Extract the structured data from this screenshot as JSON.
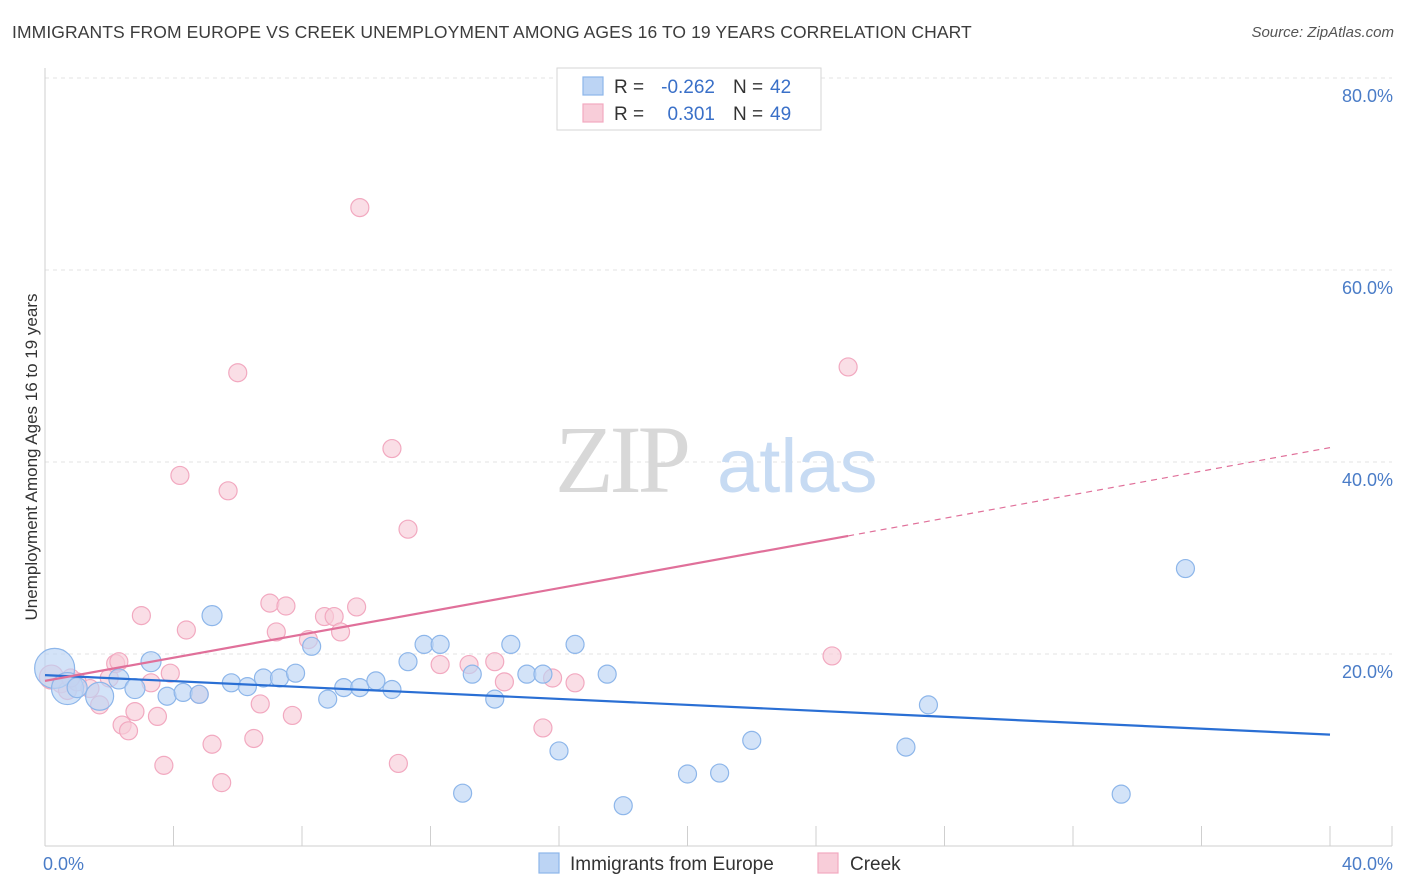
{
  "header": {
    "title": "IMMIGRANTS FROM EUROPE VS CREEK UNEMPLOYMENT AMONG AGES 16 TO 19 YEARS CORRELATION CHART",
    "source": "Source: ZipAtlas.com"
  },
  "watermark": {
    "zip": "ZIP",
    "atlas": "atlas"
  },
  "chart_data": {
    "type": "scatter",
    "title": "IMMIGRANTS FROM EUROPE VS CREEK UNEMPLOYMENT AMONG AGES 16 TO 19 YEARS CORRELATION CHART",
    "xlabel": "",
    "ylabel": "Unemployment Among Ages 16 to 19 years",
    "xlim": [
      0,
      40
    ],
    "ylim": [
      0,
      80
    ],
    "x_tick_labels": [
      "0.0%",
      "40.0%"
    ],
    "y_ticks": [
      20,
      40,
      60,
      80
    ],
    "y_tick_labels": [
      "20.0%",
      "40.0%",
      "60.0%",
      "80.0%"
    ],
    "grid": true,
    "legend": {
      "position": "top-center",
      "rows": [
        {
          "r_label": "R =",
          "r_value": "-0.262",
          "n_label": "N =",
          "n_value": "42"
        },
        {
          "r_label": "R =",
          "r_value": "0.301",
          "n_label": "N =",
          "n_value": "49"
        }
      ]
    },
    "series": [
      {
        "name": "Immigrants from Europe",
        "color": "#8db6ea",
        "fill": "#bcd4f4",
        "line_color": "#2a6fd4",
        "trend": {
          "x0": 0,
          "y0": 17.8,
          "x1": 40,
          "y1": 11.6
        },
        "points": [
          [
            0.3,
            18.5,
            20
          ],
          [
            0.7,
            16.4,
            16
          ],
          [
            1.0,
            16.5,
            10
          ],
          [
            1.7,
            15.6,
            14
          ],
          [
            2.3,
            17.4,
            10
          ],
          [
            2.8,
            16.4,
            10
          ],
          [
            3.3,
            19.2,
            10
          ],
          [
            3.8,
            15.6,
            9
          ],
          [
            4.3,
            16.0,
            9
          ],
          [
            4.8,
            15.8,
            9
          ],
          [
            5.2,
            24.0,
            10
          ],
          [
            5.8,
            17.0,
            9
          ],
          [
            6.3,
            16.6,
            9
          ],
          [
            6.8,
            17.5,
            9
          ],
          [
            7.3,
            17.5,
            9
          ],
          [
            7.8,
            18.0,
            9
          ],
          [
            8.3,
            20.8,
            9
          ],
          [
            8.8,
            15.3,
            9
          ],
          [
            9.3,
            16.5,
            9
          ],
          [
            9.8,
            16.5,
            9
          ],
          [
            10.3,
            17.2,
            9
          ],
          [
            10.8,
            16.3,
            9
          ],
          [
            11.3,
            19.2,
            9
          ],
          [
            11.8,
            21.0,
            9
          ],
          [
            12.3,
            21.0,
            9
          ],
          [
            13.0,
            5.5,
            9
          ],
          [
            13.3,
            17.9,
            9
          ],
          [
            14.0,
            15.3,
            9
          ],
          [
            14.5,
            21.0,
            9
          ],
          [
            15.0,
            17.9,
            9
          ],
          [
            15.5,
            17.9,
            9
          ],
          [
            16.0,
            9.9,
            9
          ],
          [
            16.5,
            21.0,
            9
          ],
          [
            17.5,
            17.9,
            9
          ],
          [
            18.0,
            4.2,
            9
          ],
          [
            20.0,
            7.5,
            9
          ],
          [
            21.0,
            7.6,
            9
          ],
          [
            22.0,
            11.0,
            9
          ],
          [
            26.8,
            10.3,
            9
          ],
          [
            27.5,
            14.7,
            9
          ],
          [
            33.5,
            5.4,
            9
          ],
          [
            35.5,
            28.9,
            9
          ]
        ]
      },
      {
        "name": "Creek",
        "color": "#f2a9c0",
        "fill": "#f8cdd9",
        "line_color": "#e0709a",
        "trend": {
          "x0": 0,
          "y0": 17.2,
          "x1": 25,
          "y1": 32.3
        },
        "trend_ext": {
          "x0": 25,
          "y0": 32.3,
          "x1": 40,
          "y1": 41.5
        },
        "points": [
          [
            0.2,
            17.6,
            12
          ],
          [
            0.5,
            16.9,
            9
          ],
          [
            0.7,
            16.2,
            9
          ],
          [
            1.0,
            17.1,
            9
          ],
          [
            1.4,
            16.4,
            9
          ],
          [
            1.7,
            14.7,
            9
          ],
          [
            2.0,
            17.5,
            9
          ],
          [
            2.2,
            19.0,
            9
          ],
          [
            2.3,
            19.2,
            9
          ],
          [
            2.4,
            12.6,
            9
          ],
          [
            2.6,
            12.0,
            9
          ],
          [
            2.8,
            14.0,
            9
          ],
          [
            3.0,
            24.0,
            9
          ],
          [
            3.3,
            17.0,
            9
          ],
          [
            3.5,
            13.5,
            9
          ],
          [
            3.7,
            8.4,
            9
          ],
          [
            3.9,
            18.0,
            9
          ],
          [
            4.2,
            38.6,
            9
          ],
          [
            4.4,
            22.5,
            9
          ],
          [
            4.8,
            15.8,
            9
          ],
          [
            5.2,
            10.6,
            9
          ],
          [
            5.5,
            6.6,
            9
          ],
          [
            5.7,
            37.0,
            9
          ],
          [
            6.0,
            49.3,
            9
          ],
          [
            6.5,
            11.2,
            9
          ],
          [
            6.7,
            14.8,
            9
          ],
          [
            7.0,
            25.3,
            9
          ],
          [
            7.2,
            22.3,
            9
          ],
          [
            7.5,
            25.0,
            9
          ],
          [
            7.7,
            13.6,
            9
          ],
          [
            8.2,
            21.5,
            9
          ],
          [
            8.7,
            23.9,
            9
          ],
          [
            9.0,
            23.9,
            9
          ],
          [
            9.2,
            22.3,
            9
          ],
          [
            9.7,
            24.9,
            9
          ],
          [
            9.8,
            66.5,
            9
          ],
          [
            10.8,
            41.4,
            9
          ],
          [
            11.0,
            8.6,
            9
          ],
          [
            11.3,
            33.0,
            9
          ],
          [
            12.3,
            18.9,
            9
          ],
          [
            13.2,
            18.9,
            9
          ],
          [
            14.0,
            19.2,
            9
          ],
          [
            14.3,
            17.1,
            9
          ],
          [
            15.5,
            12.3,
            9
          ],
          [
            15.8,
            17.5,
            9
          ],
          [
            16.5,
            17.0,
            9
          ],
          [
            24.5,
            19.8,
            9
          ],
          [
            25.0,
            49.9,
            9
          ],
          [
            0.8,
            17.5,
            9
          ]
        ]
      }
    ]
  },
  "bottom_legend": [
    {
      "label": "Immigrants from Europe"
    },
    {
      "label": "Creek"
    }
  ]
}
